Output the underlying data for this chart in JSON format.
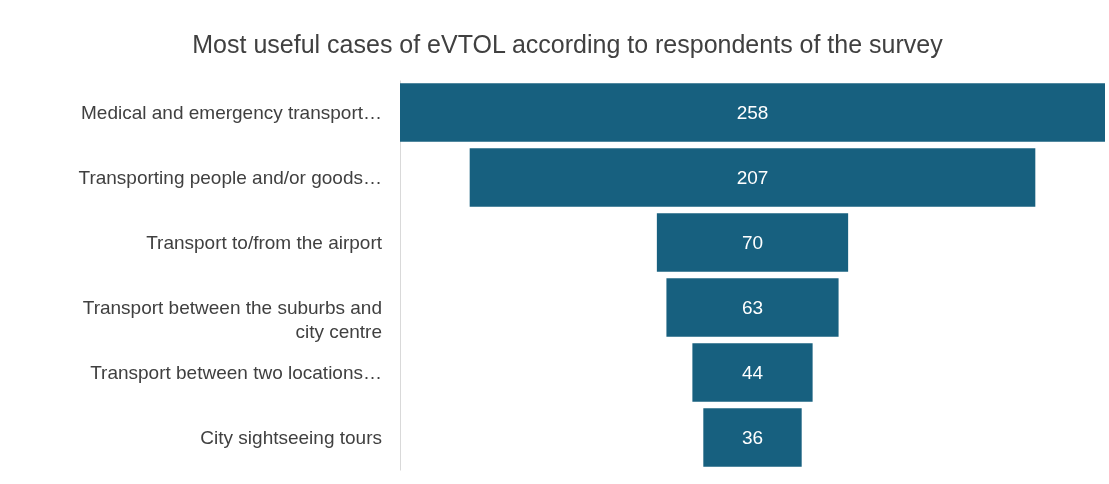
{
  "chart_data": {
    "type": "other",
    "title": "Most useful cases of eVTOL according to respondents of the survey",
    "categories": [
      "Medical and emergency transport…",
      "Transporting people and/or goods…",
      "Transport to/from the airport",
      "Transport between the suburbs and city centre",
      "Transport between two locations…",
      "City sightseeing tours"
    ],
    "values": [
      258,
      207,
      70,
      63,
      44,
      36
    ],
    "color": "#17607f",
    "data_labels": true
  }
}
